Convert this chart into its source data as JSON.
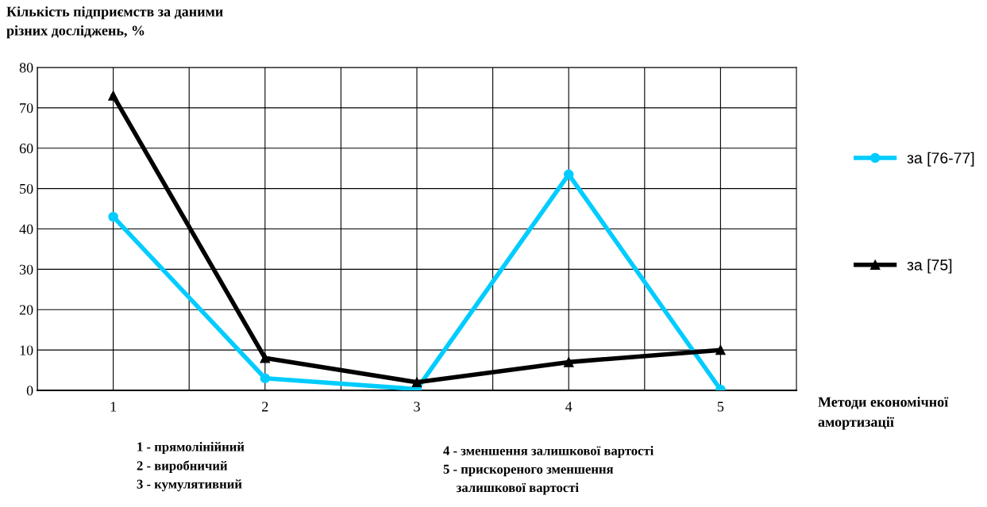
{
  "chart_data": {
    "type": "line",
    "ylabel": "Кількість підприємств за даними\nрізних досліджень, %",
    "xlabel": "Методи економічної\nамортизації",
    "categories": [
      "1",
      "2",
      "3",
      "4",
      "5"
    ],
    "series": [
      {
        "name": "за [76-77]",
        "color": "#00ccff",
        "marker": "circle",
        "values": [
          43,
          3,
          0.3,
          53.5,
          0.2
        ]
      },
      {
        "name": "за [75]",
        "color": "#000000",
        "marker": "triangle",
        "values": [
          73,
          8,
          2,
          7,
          10
        ]
      }
    ],
    "ylim": [
      0,
      80
    ],
    "yticks": [
      0,
      10,
      20,
      30,
      40,
      50,
      60,
      70,
      80
    ],
    "grid": true,
    "legend": "right",
    "line_style": "solid",
    "annotations": [
      "1 - прямолінійний\n2 - виробничий\n3 - кумулятивний",
      "4 - зменшення залишкової вартості\n5 - прискореного зменшення\n    залишкової вартості"
    ]
  }
}
